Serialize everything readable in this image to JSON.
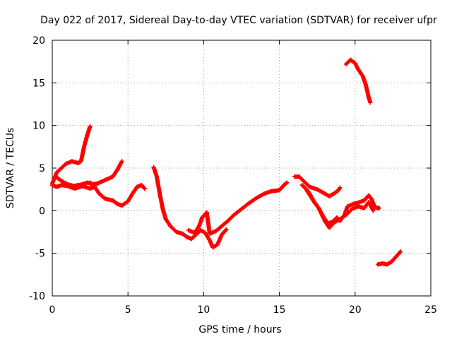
{
  "chart_data": {
    "type": "scatter",
    "title": "Day 022 of 2017, Sidereal Day-to-day VTEC variation (SDTVAR) for receiver ufpr",
    "xlabel": "GPS time / hours",
    "ylabel": "SDTVAR / TECUs",
    "xlim": [
      0,
      25
    ],
    "ylim": [
      -10,
      20
    ],
    "x_ticks": [
      0,
      5,
      10,
      15,
      20,
      25
    ],
    "y_ticks": [
      -10,
      -5,
      0,
      5,
      10,
      15,
      20
    ],
    "x_tick_labels": [
      "0",
      "5",
      "10",
      "15",
      "20",
      "25"
    ],
    "y_tick_labels": [
      "-10",
      "-5",
      "0",
      "5",
      "10",
      "15",
      "20"
    ],
    "grid": true,
    "marker": "+",
    "color": "#ff0000",
    "series": [
      {
        "points": [
          [
            0,
            3.2
          ],
          [
            0.3,
            4.5
          ],
          [
            0.6,
            5
          ],
          [
            0.9,
            5.5
          ],
          [
            1.3,
            5.8
          ],
          [
            1.7,
            5.6
          ],
          [
            1.9,
            5.8
          ],
          [
            2.1,
            7.5
          ],
          [
            2.3,
            8.8
          ],
          [
            2.5,
            9.9
          ]
        ]
      },
      {
        "points": [
          [
            0,
            3
          ],
          [
            0.3,
            2.8
          ],
          [
            0.6,
            3
          ],
          [
            1,
            2.9
          ],
          [
            1.5,
            2.6
          ],
          [
            2,
            2.9
          ],
          [
            2.5,
            2.6
          ],
          [
            2.8,
            2.8
          ]
        ]
      },
      {
        "points": [
          [
            0.3,
            3.9
          ],
          [
            0.6,
            3.5
          ],
          [
            1,
            3.1
          ],
          [
            1.4,
            2.9
          ],
          [
            2,
            3.1
          ],
          [
            2.3,
            3.3
          ],
          [
            2.7,
            3.1
          ],
          [
            3,
            3.2
          ],
          [
            3.5,
            3.6
          ],
          [
            4,
            4
          ],
          [
            4.3,
            4.8
          ],
          [
            4.6,
            5.8
          ]
        ]
      },
      {
        "points": [
          [
            2.5,
            3.3
          ],
          [
            2.8,
            2.8
          ],
          [
            3.1,
            2
          ],
          [
            3.5,
            1.4
          ],
          [
            4,
            1.2
          ],
          [
            4.3,
            0.8
          ],
          [
            4.6,
            0.6
          ],
          [
            5,
            1.1
          ],
          [
            5.3,
            2
          ],
          [
            5.6,
            2.8
          ],
          [
            5.9,
            3
          ],
          [
            6.1,
            2.6
          ]
        ]
      },
      {
        "points": [
          [
            6.7,
            5.1
          ],
          [
            6.9,
            4
          ],
          [
            7.1,
            2
          ],
          [
            7.3,
            0.2
          ],
          [
            7.5,
            -1
          ],
          [
            7.8,
            -1.8
          ],
          [
            8.2,
            -2.5
          ],
          [
            8.6,
            -2.7
          ],
          [
            8.9,
            -3.1
          ],
          [
            9.2,
            -3.3
          ],
          [
            9.5,
            -2.8
          ],
          [
            9.8,
            -2.3
          ],
          [
            10.1,
            -2.6
          ],
          [
            10.4,
            -3.5
          ],
          [
            10.6,
            -4.3
          ],
          [
            10.9,
            -4
          ],
          [
            11.2,
            -2.8
          ],
          [
            11.5,
            -2.2
          ]
        ]
      },
      {
        "points": [
          [
            9,
            -2.3
          ],
          [
            9.4,
            -2.6
          ],
          [
            9.7,
            -1.8
          ],
          [
            9.9,
            -0.8
          ],
          [
            10.2,
            -0.2
          ],
          [
            10.4,
            -2.7
          ],
          [
            10.8,
            -2.4
          ],
          [
            11.2,
            -1.8
          ],
          [
            11.6,
            -1.2
          ],
          [
            12,
            -0.5
          ],
          [
            12.5,
            0.2
          ],
          [
            13,
            0.9
          ],
          [
            13.5,
            1.5
          ],
          [
            14,
            2
          ],
          [
            14.5,
            2.3
          ],
          [
            15,
            2.4
          ],
          [
            15.3,
            3
          ],
          [
            15.5,
            3.3
          ]
        ]
      },
      {
        "points": [
          [
            16,
            4
          ],
          [
            16.3,
            4
          ],
          [
            16.7,
            3.3
          ],
          [
            17,
            2.8
          ],
          [
            17.5,
            2.5
          ],
          [
            18,
            2
          ],
          [
            18.3,
            1.7
          ],
          [
            18.6,
            2
          ],
          [
            18.9,
            2.4
          ],
          [
            19,
            2.7
          ]
        ]
      },
      {
        "points": [
          [
            16.5,
            3
          ],
          [
            16.8,
            2.5
          ],
          [
            17,
            2
          ],
          [
            17.3,
            1
          ],
          [
            17.6,
            0.3
          ],
          [
            17.9,
            -0.7
          ],
          [
            18.2,
            -1.5
          ],
          [
            18.5,
            -1.3
          ],
          [
            18.8,
            -0.8
          ],
          [
            19,
            -1.2
          ],
          [
            19.3,
            -0.5
          ],
          [
            19.5,
            0.5
          ],
          [
            19.9,
            0.8
          ],
          [
            20.3,
            1
          ],
          [
            20.6,
            1.2
          ],
          [
            20.9,
            1.8
          ],
          [
            21.1,
            1.3
          ],
          [
            21.3,
            0.4
          ],
          [
            21.6,
            0.3
          ]
        ]
      },
      {
        "points": [
          [
            16.8,
            2.4
          ],
          [
            17.2,
            1.3
          ],
          [
            17.6,
            0.3
          ],
          [
            18,
            -1.2
          ],
          [
            18.3,
            -2
          ],
          [
            18.6,
            -1.4
          ],
          [
            19,
            -1
          ],
          [
            19.4,
            -0.5
          ],
          [
            19.8,
            0.2
          ],
          [
            20.2,
            0.5
          ],
          [
            20.6,
            0.3
          ],
          [
            20.9,
            1
          ],
          [
            21.2,
            0
          ]
        ]
      },
      {
        "points": [
          [
            19.4,
            17.2
          ],
          [
            19.7,
            17.7
          ],
          [
            20,
            17.3
          ],
          [
            20.2,
            16.6
          ],
          [
            20.5,
            15.8
          ],
          [
            20.7,
            14.8
          ],
          [
            20.9,
            13.3
          ],
          [
            21,
            12.7
          ]
        ]
      },
      {
        "points": [
          [
            21.5,
            -6.3
          ],
          [
            21.8,
            -6.2
          ],
          [
            22.1,
            -6.3
          ],
          [
            22.4,
            -6
          ],
          [
            22.7,
            -5.4
          ],
          [
            23,
            -4.8
          ]
        ]
      }
    ]
  }
}
